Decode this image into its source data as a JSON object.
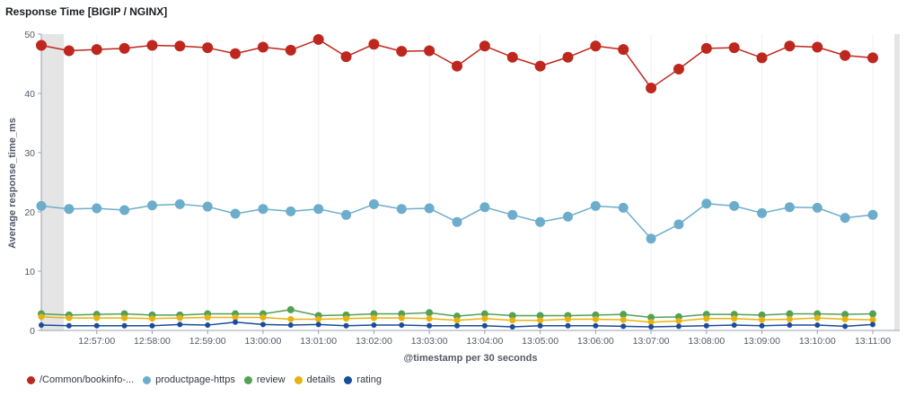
{
  "panel": {
    "title": "Response Time [BIGIP / NGINX]"
  },
  "chart_data": {
    "type": "line",
    "title": "Response Time [BIGIP / NGINX]",
    "xlabel": "@timestamp per 30 seconds",
    "ylabel": "Average response_time_ms",
    "ylim": [
      0,
      50
    ],
    "yticks": [
      "0",
      "10",
      "20",
      "30",
      "40",
      "50"
    ],
    "xticks": [
      "12:57:00",
      "12:58:00",
      "12:59:00",
      "13:00:00",
      "13:01:00",
      "13:02:00",
      "13:03:00",
      "13:04:00",
      "13:05:00",
      "13:06:00",
      "13:07:00",
      "13:08:00",
      "13:09:00",
      "13:10:00",
      "13:11:00"
    ],
    "x": [
      "12:56:00",
      "12:56:30",
      "12:57:00",
      "12:57:30",
      "12:58:00",
      "12:58:30",
      "12:59:00",
      "12:59:30",
      "13:00:00",
      "13:00:30",
      "13:01:00",
      "13:01:30",
      "13:02:00",
      "13:02:30",
      "13:03:00",
      "13:03:30",
      "13:04:00",
      "13:04:30",
      "13:05:00",
      "13:05:30",
      "13:06:00",
      "13:06:30",
      "13:07:00",
      "13:07:30",
      "13:08:00",
      "13:08:30",
      "13:09:00",
      "13:09:30",
      "13:10:00",
      "13:10:30",
      "13:11:00"
    ],
    "grid": "vertical",
    "legend_position": "bottom-left",
    "series": [
      {
        "name": "/Common/bookinfo-...",
        "color": "#bd271e",
        "values": [
          48.1,
          47.2,
          47.4,
          47.6,
          48.1,
          48.0,
          47.7,
          46.7,
          47.8,
          47.3,
          49.1,
          46.2,
          48.3,
          47.1,
          47.2,
          44.6,
          48.0,
          46.1,
          44.6,
          46.1,
          48.0,
          47.4,
          40.9,
          44.1,
          47.6,
          47.7,
          46.0,
          48.0,
          47.8,
          46.4,
          46.0
        ]
      },
      {
        "name": "productpage-https",
        "color": "#6dadcc",
        "values": [
          21.0,
          20.5,
          20.6,
          20.3,
          21.1,
          21.3,
          20.9,
          19.7,
          20.5,
          20.1,
          20.5,
          19.5,
          21.3,
          20.5,
          20.6,
          18.3,
          20.8,
          19.5,
          18.3,
          19.2,
          21.0,
          20.7,
          15.5,
          17.9,
          21.4,
          21.0,
          19.8,
          20.8,
          20.7,
          19.0,
          19.5
        ]
      },
      {
        "name": "review",
        "color": "#54a054",
        "values": [
          2.8,
          2.6,
          2.7,
          2.8,
          2.6,
          2.6,
          2.8,
          2.8,
          2.8,
          3.5,
          2.5,
          2.6,
          2.8,
          2.8,
          3.0,
          2.4,
          2.8,
          2.5,
          2.5,
          2.5,
          2.6,
          2.7,
          2.2,
          2.3,
          2.7,
          2.7,
          2.6,
          2.8,
          2.8,
          2.7,
          2.8
        ]
      },
      {
        "name": "details",
        "color": "#e7b20e",
        "values": [
          2.3,
          2.1,
          2.1,
          2.1,
          2.0,
          2.1,
          2.2,
          2.2,
          2.2,
          1.9,
          1.9,
          2.0,
          2.1,
          2.1,
          2.0,
          1.7,
          2.0,
          1.7,
          1.7,
          1.9,
          1.9,
          1.8,
          1.4,
          1.6,
          2.0,
          2.0,
          1.8,
          1.9,
          2.1,
          1.9,
          1.8
        ]
      },
      {
        "name": "rating",
        "color": "#1a4c9b",
        "values": [
          0.9,
          0.8,
          0.8,
          0.8,
          0.8,
          1.0,
          0.9,
          1.4,
          1.0,
          0.9,
          1.0,
          0.8,
          0.9,
          0.9,
          0.8,
          0.8,
          0.8,
          0.6,
          0.8,
          0.8,
          0.8,
          0.7,
          0.6,
          0.7,
          0.8,
          0.9,
          0.8,
          0.9,
          0.9,
          0.7,
          1.0
        ]
      }
    ]
  }
}
